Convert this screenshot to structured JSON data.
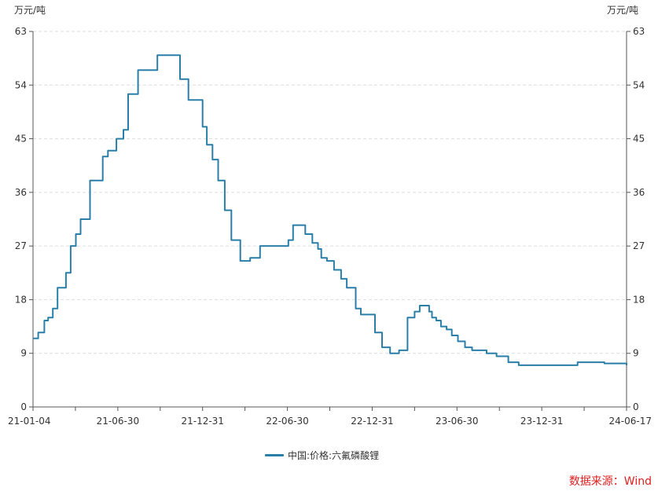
{
  "chart_data": {
    "type": "line",
    "left_unit": "万元/吨",
    "right_unit": "万元/吨",
    "ylim": [
      0,
      63
    ],
    "y_ticks": [
      0,
      9,
      18,
      27,
      36,
      45,
      54,
      63
    ],
    "x_tick_labels": [
      "21-01-04",
      "21-06-30",
      "21-12-31",
      "22-06-30",
      "22-12-31",
      "23-06-30",
      "23-12-31",
      "24-06-17"
    ],
    "grid": "horizontal dashed",
    "legend_position": "bottom-center",
    "series": [
      {
        "name": "中国:价格:六氟磷酸锂",
        "color": "#2a7fa8",
        "x": [
          "2021-01-04",
          "2021-01-15",
          "2021-01-28",
          "2021-02-05",
          "2021-02-15",
          "2021-02-25",
          "2021-03-05",
          "2021-03-15",
          "2021-03-25",
          "2021-04-05",
          "2021-04-15",
          "2021-04-25",
          "2021-05-05",
          "2021-05-20",
          "2021-06-01",
          "2021-06-12",
          "2021-06-30",
          "2021-07-15",
          "2021-07-25",
          "2021-08-05",
          "2021-08-15",
          "2021-08-25",
          "2021-09-10",
          "2021-09-25",
          "2021-10-20",
          "2021-11-12",
          "2021-11-30",
          "2021-12-30",
          "2022-01-08",
          "2022-01-20",
          "2022-02-01",
          "2022-02-15",
          "2022-03-01",
          "2022-03-20",
          "2022-04-10",
          "2022-04-25",
          "2022-05-01",
          "2022-05-20",
          "2022-06-01",
          "2022-06-30",
          "2022-07-10",
          "2022-08-05",
          "2022-08-20",
          "2022-09-01",
          "2022-09-08",
          "2022-09-20",
          "2022-10-05",
          "2022-10-20",
          "2022-11-01",
          "2022-11-20",
          "2022-12-01",
          "2022-12-31",
          "2023-01-15",
          "2023-02-01",
          "2023-02-20",
          "2023-03-10",
          "2023-03-25",
          "2023-04-05",
          "2023-04-15",
          "2023-04-25",
          "2023-05-01",
          "2023-05-10",
          "2023-05-20",
          "2023-06-01",
          "2023-06-12",
          "2023-06-25",
          "2023-07-10",
          "2023-07-25",
          "2023-08-10",
          "2023-08-25",
          "2023-09-15",
          "2023-10-10",
          "2023-11-01",
          "2023-12-01",
          "2024-01-01",
          "2024-02-01",
          "2024-03-05",
          "2024-03-20",
          "2024-04-10",
          "2024-05-01",
          "2024-06-17"
        ],
        "values": [
          11.5,
          12.5,
          14.5,
          15.0,
          16.5,
          20.0,
          20.0,
          22.5,
          27.0,
          29.0,
          31.5,
          31.5,
          38.0,
          38.0,
          42.0,
          43.0,
          45.0,
          46.5,
          52.5,
          52.5,
          56.5,
          56.5,
          56.5,
          59.0,
          59.0,
          55.0,
          51.5,
          47.0,
          44.0,
          41.5,
          38.0,
          33.0,
          28.0,
          24.5,
          25.0,
          25.0,
          27.0,
          27.0,
          27.0,
          28.0,
          30.5,
          29.0,
          27.5,
          26.5,
          25.0,
          24.5,
          23.0,
          21.5,
          20.0,
          16.5,
          15.5,
          12.5,
          10.0,
          9.0,
          9.5,
          15.0,
          16.0,
          17.0,
          17.0,
          16.0,
          15.0,
          14.5,
          13.5,
          13.0,
          12.0,
          11.0,
          10.0,
          9.5,
          9.5,
          9.0,
          8.5,
          7.5,
          7.0,
          7.0,
          7.0,
          7.0,
          7.5,
          7.5,
          7.5,
          7.3,
          7.0
        ]
      }
    ]
  },
  "legend": {
    "label": "中国:价格:六氟磷酸锂"
  },
  "source_note": "数据来源：Wind"
}
